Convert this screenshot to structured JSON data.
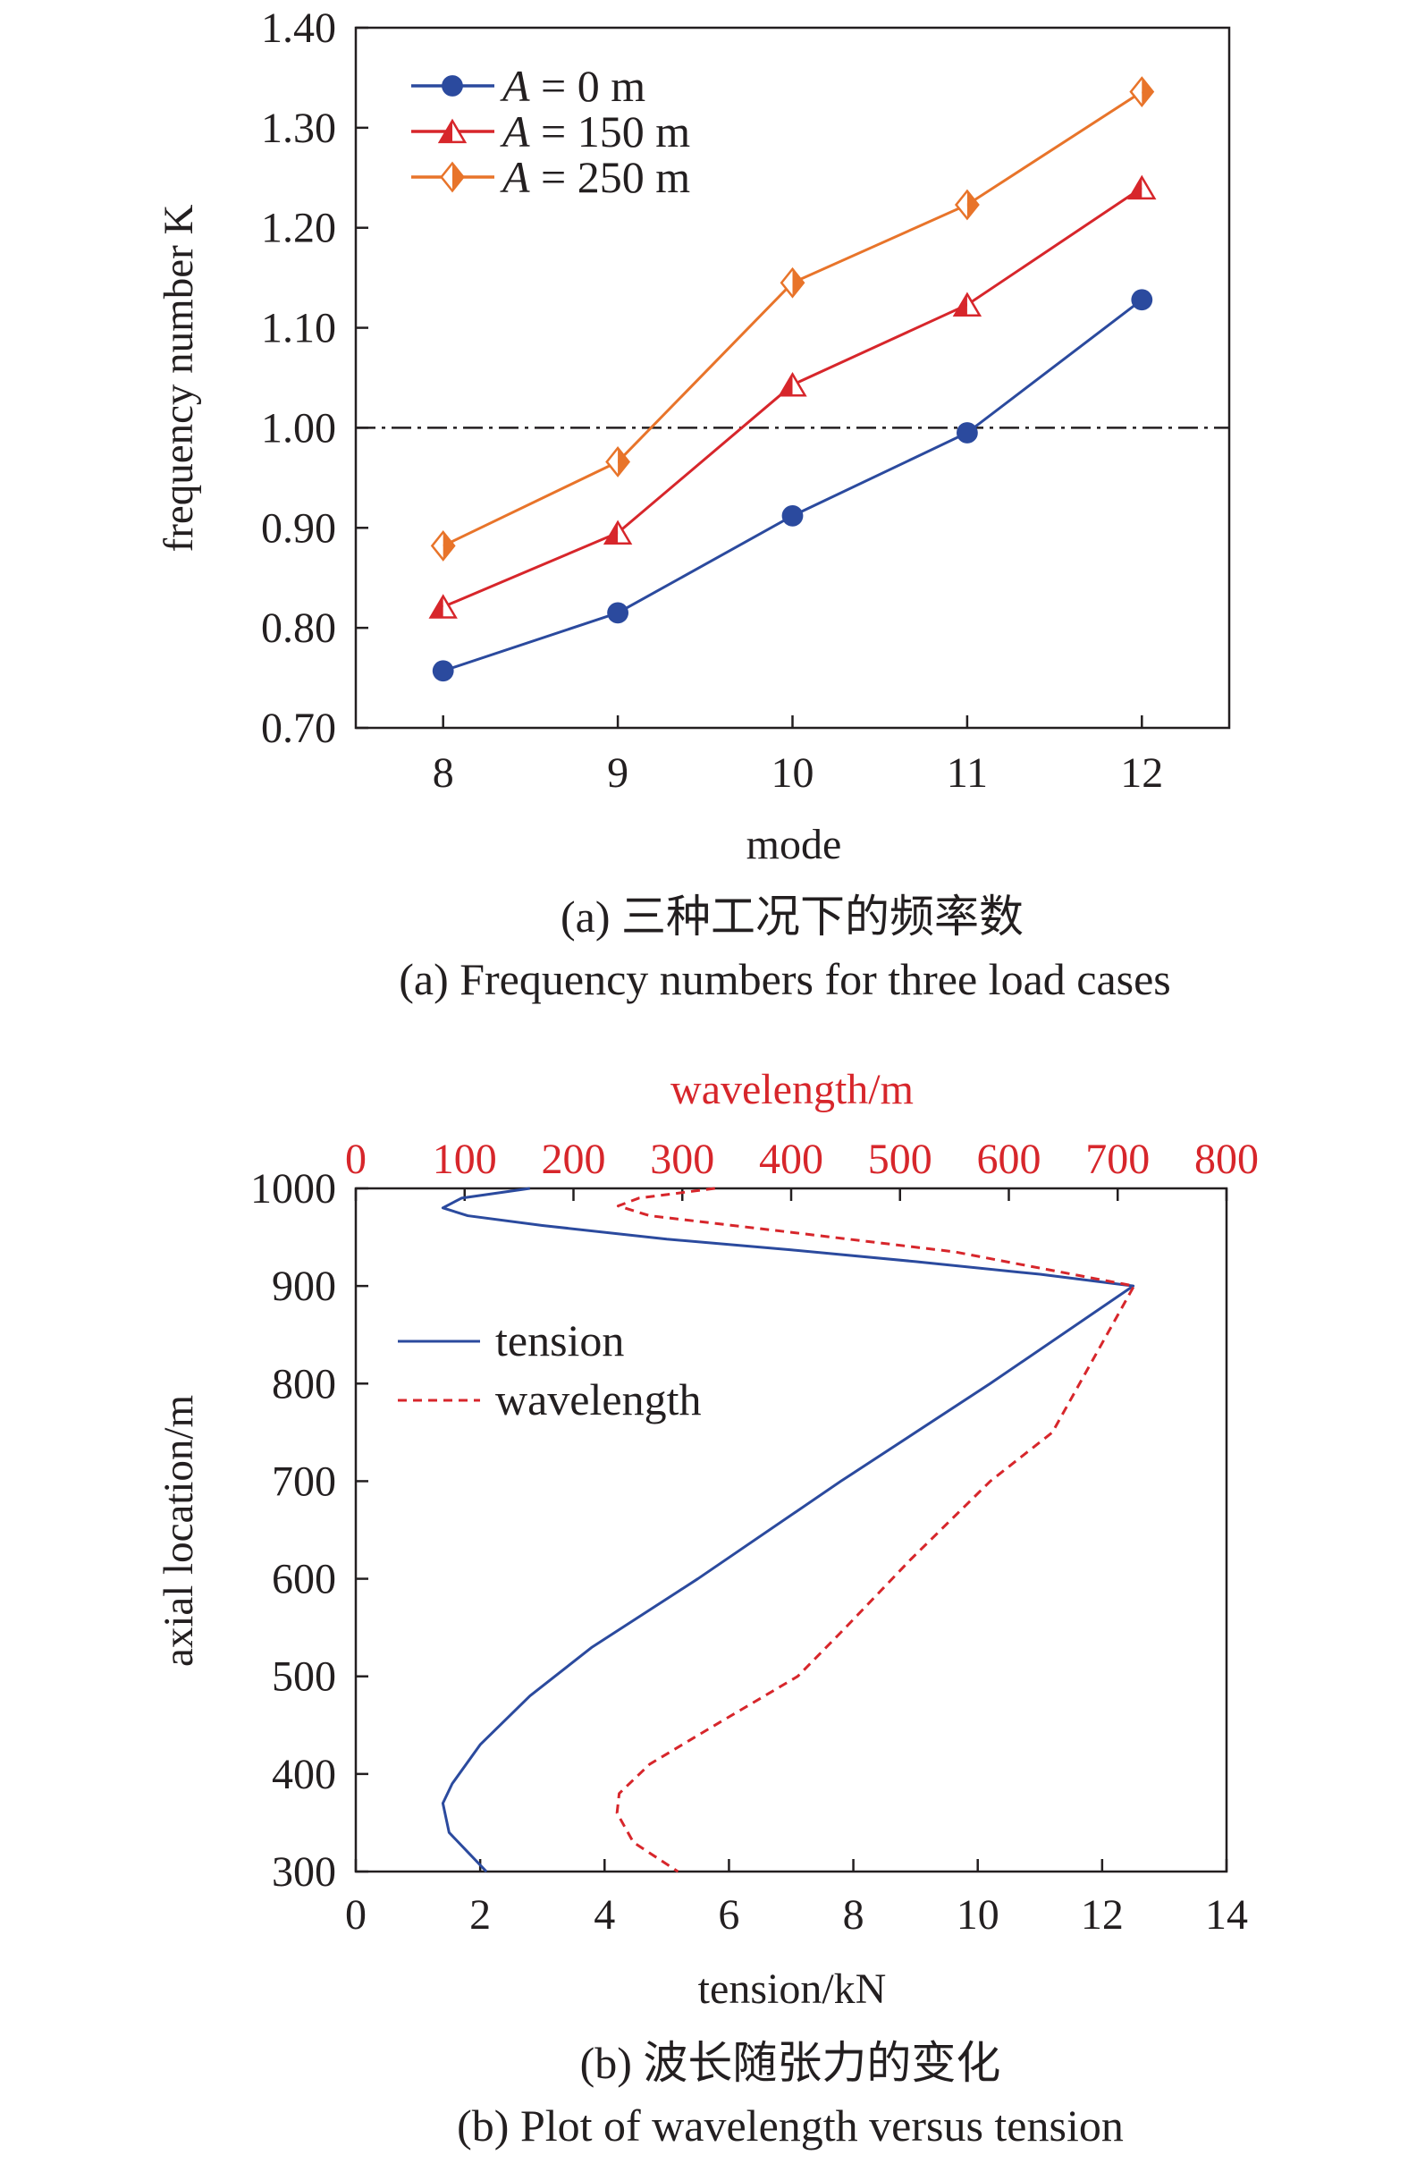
{
  "chart_data": [
    {
      "type": "line",
      "xlabel": "mode",
      "ylabel": "frequency number K",
      "categories": [
        8,
        9,
        10,
        11,
        12
      ],
      "xlim": [
        7.5,
        12.5
      ],
      "ylim": [
        0.7,
        1.4
      ],
      "yticks": [
        "0.70",
        "0.80",
        "0.90",
        "1.00",
        "1.10",
        "1.20",
        "1.30",
        "1.40"
      ],
      "reference_line": {
        "y": 1.0,
        "style": "dash-dot",
        "color": "#231f20"
      },
      "legend_position": "top-left",
      "series": [
        {
          "name": "A = 0 m",
          "var": "A",
          "label_rest": " = 0 m",
          "marker": "circle",
          "color": "#2b4a9e",
          "values": [
            0.757,
            0.815,
            0.912,
            0.995,
            1.128
          ]
        },
        {
          "name": "A = 150 m",
          "var": "A",
          "label_rest": " = 150 m",
          "marker": "half-filled-triangle",
          "color": "#d7262b",
          "values": [
            0.821,
            0.895,
            1.043,
            1.123,
            1.24
          ]
        },
        {
          "name": "A = 250 m",
          "var": "A",
          "label_rest": " = 250 m",
          "marker": "half-filled-diamond",
          "color": "#e8742a",
          "values": [
            0.882,
            0.966,
            1.145,
            1.223,
            1.336
          ]
        }
      ],
      "caption_cn": "(a) 三种工况下的频率数",
      "caption_en": "(a) Frequency numbers for three load cases"
    },
    {
      "type": "line",
      "xlabel": "tension/kN",
      "x2label": "wavelength/m",
      "ylabel": "axial location/m",
      "xlim": [
        0,
        14
      ],
      "x2lim": [
        0,
        800
      ],
      "ylim": [
        300,
        1000
      ],
      "xticks": [
        "0",
        "2",
        "4",
        "6",
        "8",
        "10",
        "12",
        "14"
      ],
      "x2ticks": [
        "0",
        "100",
        "200",
        "300",
        "400",
        "500",
        "600",
        "700",
        "800"
      ],
      "yticks": [
        "300",
        "400",
        "500",
        "600",
        "700",
        "800",
        "900",
        "1000"
      ],
      "legend_position": "upper-left",
      "series": [
        {
          "name": "tension",
          "axis": "bottom",
          "style": "solid",
          "color": "#2b4a9e",
          "points": [
            [
              2.8,
              1000
            ],
            [
              1.7,
              990
            ],
            [
              1.4,
              980
            ],
            [
              1.8,
              972
            ],
            [
              3.0,
              962
            ],
            [
              5.0,
              948
            ],
            [
              7.0,
              937
            ],
            [
              9.0,
              925
            ],
            [
              11.0,
              912
            ],
            [
              12.5,
              900
            ],
            [
              10.2,
              800
            ],
            [
              7.8,
              700
            ],
            [
              5.5,
              600
            ],
            [
              3.8,
              530
            ],
            [
              2.8,
              480
            ],
            [
              2.0,
              430
            ],
            [
              1.55,
              390
            ],
            [
              1.4,
              370
            ],
            [
              1.5,
              340
            ],
            [
              1.8,
              320
            ],
            [
              2.1,
              300
            ]
          ]
        },
        {
          "name": "wavelength",
          "axis": "top",
          "style": "dashed",
          "color": "#d7262b",
          "points": [
            [
              330,
              1000
            ],
            [
              260,
              990
            ],
            [
              241,
              982
            ],
            [
              270,
              972
            ],
            [
              400,
              955
            ],
            [
              550,
              935
            ],
            [
              715,
              900
            ],
            [
              690,
              850
            ],
            [
              640,
              750
            ],
            [
              583,
              700
            ],
            [
              510,
              620
            ],
            [
              450,
              550
            ],
            [
              406,
              500
            ],
            [
              330,
              450
            ],
            [
              270,
              410
            ],
            [
              242,
              380
            ],
            [
              240,
              360
            ],
            [
              255,
              330
            ],
            [
              296,
              300
            ]
          ]
        }
      ],
      "caption_cn": "(b) 波长随张力的变化",
      "caption_en": "(b) Plot of wavelength versus tension"
    }
  ]
}
